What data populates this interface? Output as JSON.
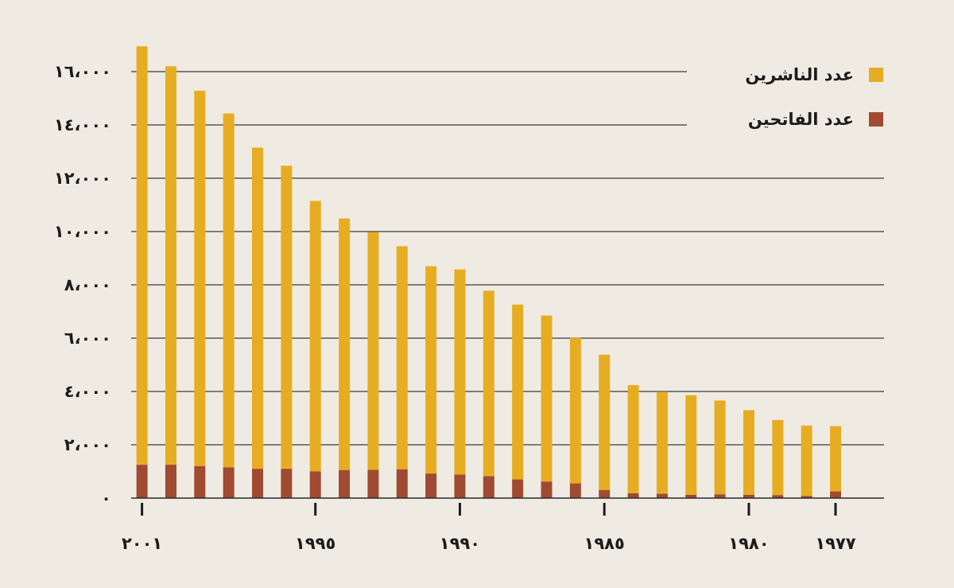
{
  "chart_data": {
    "type": "bar",
    "stacked": true,
    "x_axis_direction": "right-to-left",
    "years": [
      1977,
      1978,
      1979,
      1980,
      1981,
      1982,
      1983,
      1984,
      1985,
      1986,
      1987,
      1988,
      1989,
      1990,
      1991,
      1992,
      1993,
      1994,
      1995,
      1996,
      1997,
      1998,
      1999,
      2000,
      2001
    ],
    "x_tick_values": [
      2001,
      1995,
      1990,
      1985,
      1980,
      1977
    ],
    "x_tick_labels": [
      "٢٠٠١",
      "١٩٩٥",
      "١٩٩٠",
      "١٩٨٥",
      "١٩٨٠",
      "١٩٧٧"
    ],
    "series": [
      {
        "name": "عدد الفاتحين",
        "color": "#a04a32",
        "values": [
          250,
          80,
          110,
          120,
          140,
          120,
          160,
          180,
          300,
          550,
          620,
          700,
          820,
          880,
          920,
          1080,
          1060,
          1050,
          1000,
          1100,
          1100,
          1150,
          1200,
          1250,
          1250
        ]
      },
      {
        "name": "عدد الناشرين",
        "color": "#e7ad22",
        "values": [
          2450,
          2640,
          2820,
          3180,
          3520,
          3740,
          3830,
          4060,
          5080,
          5460,
          6230,
          6560,
          6960,
          7700,
          7780,
          8370,
          8920,
          9440,
          10150,
          11370,
          12050,
          13280,
          14080,
          14950,
          15700
        ]
      }
    ],
    "y_ticks": [
      0,
      2000,
      4000,
      6000,
      8000,
      10000,
      12000,
      14000,
      16000
    ],
    "y_tick_labels": [
      "٠",
      "٢،٠٠٠",
      "٤،٠٠٠",
      "٦،٠٠٠",
      "٨،٠٠٠",
      "١٠،٠٠٠",
      "١٢،٠٠٠",
      "١٤،٠٠٠",
      "١٦،٠٠٠"
    ],
    "ylim": [
      0,
      16000
    ],
    "grid": "horizontal",
    "legend_position": "top-right",
    "legend": [
      {
        "label": "عدد الناشرين",
        "color": "#e7ad22"
      },
      {
        "label": "عدد الفاتحين",
        "color": "#a04a32"
      }
    ],
    "title": "",
    "xlabel": "",
    "ylabel": ""
  }
}
